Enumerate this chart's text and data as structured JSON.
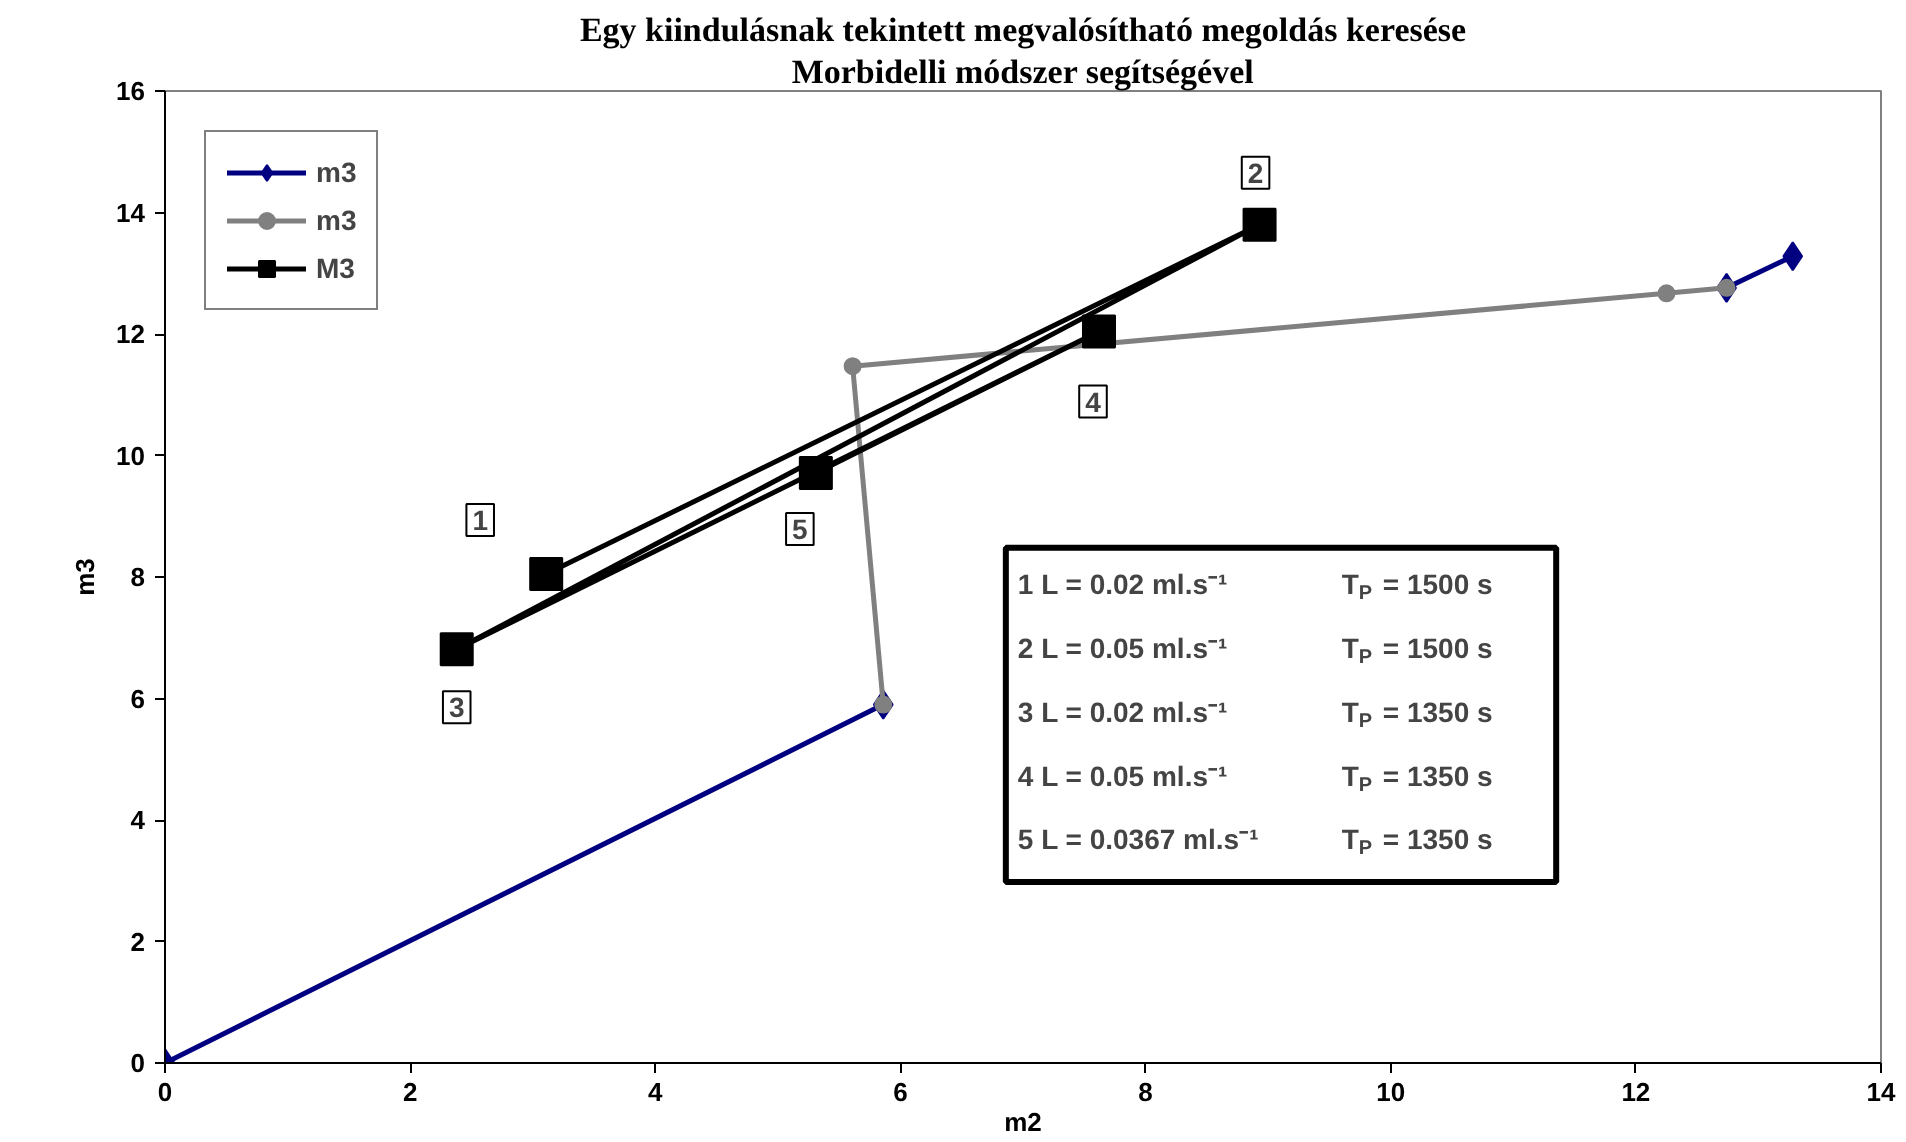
{
  "chart_data": {
    "type": "line",
    "title": "Egy kiindulásnak tekintett megvalósítható megoldás keresése",
    "subtitle": "Morbidelli módszer segítségével",
    "xlabel": "m2",
    "ylabel": "m3",
    "xlim": [
      0,
      14
    ],
    "ylim": [
      0,
      16
    ],
    "xticks": [
      0,
      2,
      4,
      6,
      8,
      10,
      12,
      14
    ],
    "yticks": [
      0,
      2,
      4,
      6,
      8,
      10,
      12,
      14,
      16
    ],
    "grid": false,
    "legend": "top left",
    "series": [
      {
        "name": "m3",
        "color": "#000080",
        "marker": "diamond",
        "x": [
          0,
          5.86,
          null,
          12.74,
          13.28
        ],
        "values": [
          0,
          5.9,
          null,
          12.76,
          13.28
        ]
      },
      {
        "name": "m3",
        "color": "#808080",
        "marker": "circle",
        "x": [
          5.86,
          5.61,
          12.25,
          12.74
        ],
        "values": [
          5.9,
          11.47,
          12.67,
          12.76
        ]
      },
      {
        "name": "M3",
        "color": "#000000",
        "marker": "square",
        "x": [
          3.11,
          8.93,
          2.38,
          7.62,
          5.31
        ],
        "values": [
          8.05,
          13.8,
          6.81,
          12.04,
          9.71
        ]
      }
    ],
    "annotations": [
      {
        "text": "1",
        "x": 3.11,
        "y": 8.05
      },
      {
        "text": "2",
        "x": 8.93,
        "y": 13.8
      },
      {
        "text": "3",
        "x": 2.38,
        "y": 6.81
      },
      {
        "text": "4",
        "x": 7.62,
        "y": 12.04
      },
      {
        "text": "5",
        "x": 5.31,
        "y": 9.71
      },
      "1  L = 0.02 ml.s⁻¹     T$_{P}$ = 1500 s",
      "2  L = 0.05 ml.s⁻¹     T$_{P}$ = 1500 s",
      "3  L = 0.02 ml.s⁻¹     T$_{P}$ = 1350 s",
      "4  L = 0.05 ml.s⁻¹     T$_{P}$ = 1350 s",
      "5  L = 0.0367 ml.s⁻¹ T$_{P}$ = 1350 s"
    ]
  }
}
